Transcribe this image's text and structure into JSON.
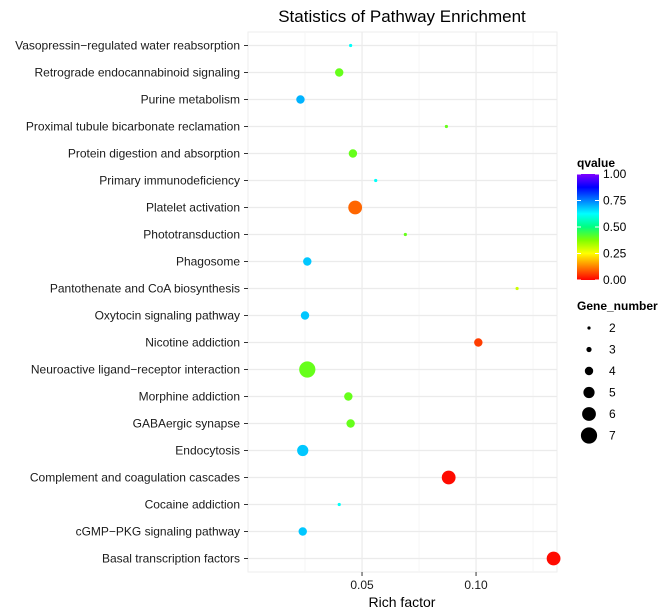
{
  "chart_data": {
    "type": "scatter",
    "title": "Statistics of Pathway Enrichment",
    "xlabel": "Rich factor",
    "ylabel": "",
    "xlim": [
      0.0,
      0.1355
    ],
    "xticks": [
      0.05,
      0.1
    ],
    "xtick_labels": [
      "0.05",
      "0.10"
    ],
    "categories": [
      "Vasopressin−regulated water reabsorption",
      "Retrograde endocannabinoid signaling",
      "Purine metabolism",
      "Proximal tubule bicarbonate reclamation",
      "Protein digestion and absorption",
      "Primary immunodeficiency",
      "Platelet activation",
      "Phototransduction",
      "Phagosome",
      "Pantothenate and CoA biosynthesis",
      "Oxytocin signaling pathway",
      "Nicotine addiction",
      "Neuroactive ligand−receptor interaction",
      "Morphine addiction",
      "GABAergic synapse",
      "Endocytosis",
      "Complement and coagulation cascades",
      "Cocaine addiction",
      "cGMP−PKG signaling pathway",
      "Basal transcription factors"
    ],
    "points": [
      {
        "pathway": "Vasopressin−regulated water reabsorption",
        "rich_factor": 0.045,
        "qvalue": 0.62,
        "gene_number": 2
      },
      {
        "pathway": "Retrograde endocannabinoid signaling",
        "rich_factor": 0.04,
        "qvalue": 0.4,
        "gene_number": 4
      },
      {
        "pathway": "Purine metabolism",
        "rich_factor": 0.023,
        "qvalue": 0.7,
        "gene_number": 4
      },
      {
        "pathway": "Proximal tubule bicarbonate reclamation",
        "rich_factor": 0.087,
        "qvalue": 0.4,
        "gene_number": 2
      },
      {
        "pathway": "Protein digestion and absorption",
        "rich_factor": 0.046,
        "qvalue": 0.4,
        "gene_number": 4
      },
      {
        "pathway": "Primary immunodeficiency",
        "rich_factor": 0.056,
        "qvalue": 0.62,
        "gene_number": 2
      },
      {
        "pathway": "Platelet activation",
        "rich_factor": 0.047,
        "qvalue": 0.1,
        "gene_number": 6
      },
      {
        "pathway": "Phototransduction",
        "rich_factor": 0.069,
        "qvalue": 0.4,
        "gene_number": 2
      },
      {
        "pathway": "Phagosome",
        "rich_factor": 0.026,
        "qvalue": 0.68,
        "gene_number": 4
      },
      {
        "pathway": "Pantothenate and CoA biosynthesis",
        "rich_factor": 0.118,
        "qvalue": 0.3,
        "gene_number": 2
      },
      {
        "pathway": "Oxytocin signaling pathway",
        "rich_factor": 0.025,
        "qvalue": 0.68,
        "gene_number": 4
      },
      {
        "pathway": "Nicotine addiction",
        "rich_factor": 0.101,
        "qvalue": 0.06,
        "gene_number": 4
      },
      {
        "pathway": "Neuroactive ligand−receptor interaction",
        "rich_factor": 0.026,
        "qvalue": 0.4,
        "gene_number": 7
      },
      {
        "pathway": "Morphine addiction",
        "rich_factor": 0.044,
        "qvalue": 0.4,
        "gene_number": 4
      },
      {
        "pathway": "GABAergic synapse",
        "rich_factor": 0.045,
        "qvalue": 0.4,
        "gene_number": 4
      },
      {
        "pathway": "Endocytosis",
        "rich_factor": 0.024,
        "qvalue": 0.68,
        "gene_number": 5
      },
      {
        "pathway": "Complement and coagulation cascades",
        "rich_factor": 0.088,
        "qvalue": 0.01,
        "gene_number": 6
      },
      {
        "pathway": "Cocaine addiction",
        "rich_factor": 0.04,
        "qvalue": 0.62,
        "gene_number": 2
      },
      {
        "pathway": "cGMP−PKG signaling pathway",
        "rich_factor": 0.024,
        "qvalue": 0.68,
        "gene_number": 4
      },
      {
        "pathway": "Basal transcription factors",
        "rich_factor": 0.134,
        "qvalue": 0.01,
        "gene_number": 6
      }
    ],
    "color_legend": {
      "title": "qvalue",
      "range": [
        0.0,
        1.0
      ],
      "ticks": [
        "1.00",
        "0.75",
        "0.50",
        "0.25",
        "0.00"
      ],
      "tick_values": [
        1.0,
        0.75,
        0.5,
        0.25,
        0.0
      ],
      "gradient_colors": [
        "#ff0000",
        "#ff8000",
        "#ffff00",
        "#80ff00",
        "#00ff80",
        "#00ffff",
        "#0080ff",
        "#0000ff",
        "#8000ff"
      ]
    },
    "size_legend": {
      "title": "Gene_number",
      "values": [
        2,
        3,
        4,
        5,
        6,
        7
      ],
      "labels": [
        "2",
        "3",
        "4",
        "5",
        "6",
        "7"
      ]
    },
    "colors": {
      "panel_background": "#ffffff",
      "grid_major": "#ebebeb",
      "grid_minor": "#f4f4f4",
      "text": "#000000"
    },
    "grid": true,
    "legend_position": "right"
  }
}
